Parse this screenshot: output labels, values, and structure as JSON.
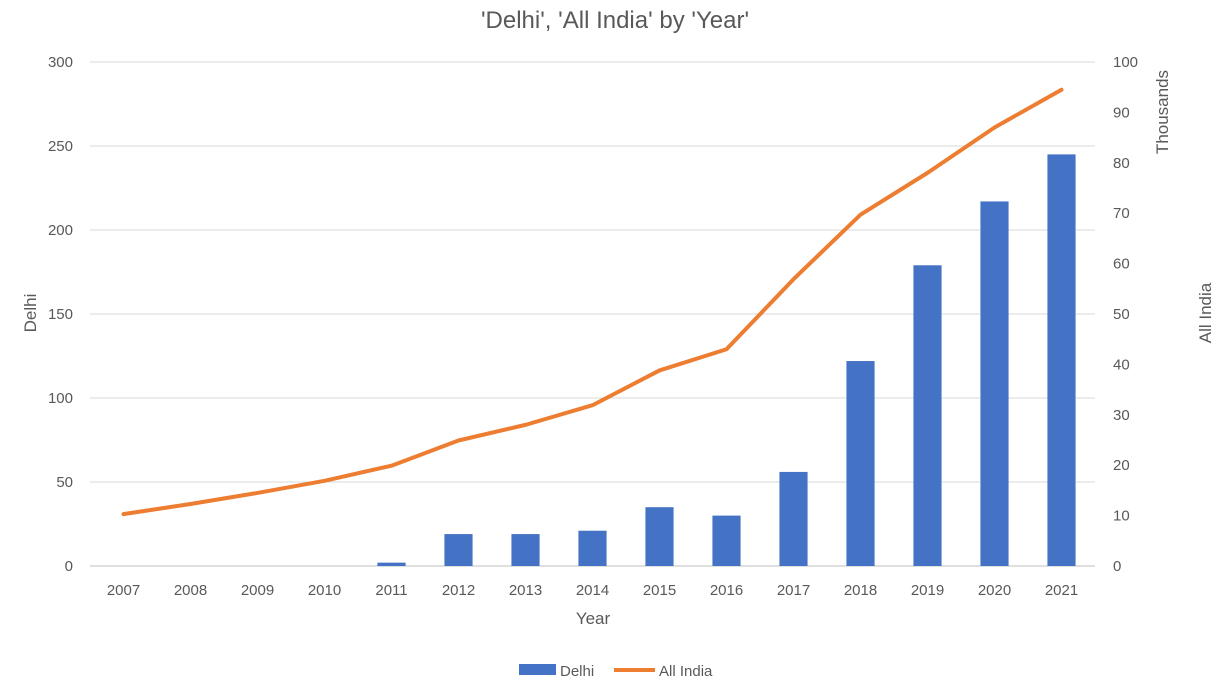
{
  "chart_data": {
    "type": "bar+line",
    "title": "'Delhi', 'All India' by 'Year'",
    "xlabel": "Year",
    "categories": [
      "2007",
      "2008",
      "2009",
      "2010",
      "2011",
      "2012",
      "2013",
      "2014",
      "2015",
      "2016",
      "2017",
      "2018",
      "2019",
      "2020",
      "2021"
    ],
    "series": [
      {
        "name": "Delhi",
        "type": "bar",
        "axis": "left",
        "color": "#4472C4",
        "values": [
          0,
          0,
          0,
          0,
          2,
          19,
          19,
          21,
          35,
          30,
          56,
          122,
          179,
          217,
          245
        ]
      },
      {
        "name": "All India",
        "type": "line",
        "axis": "right",
        "color": "#ED7D31",
        "values": [
          10.3,
          12.3,
          14.5,
          16.9,
          19.9,
          24.9,
          28.0,
          31.9,
          38.8,
          43.0,
          56.9,
          69.7,
          78.0,
          87.0,
          94.5
        ]
      }
    ],
    "y_left": {
      "label": "Delhi",
      "min": 0,
      "max": 300,
      "ticks": [
        0,
        50,
        100,
        150,
        200,
        250,
        300
      ]
    },
    "y_right": {
      "label": "All India",
      "unit_label": "Thousands",
      "min": 0,
      "max": 100,
      "ticks": [
        0,
        10,
        20,
        30,
        40,
        50,
        60,
        70,
        80,
        90,
        100
      ]
    },
    "grid": true,
    "legend_position": "bottom"
  }
}
